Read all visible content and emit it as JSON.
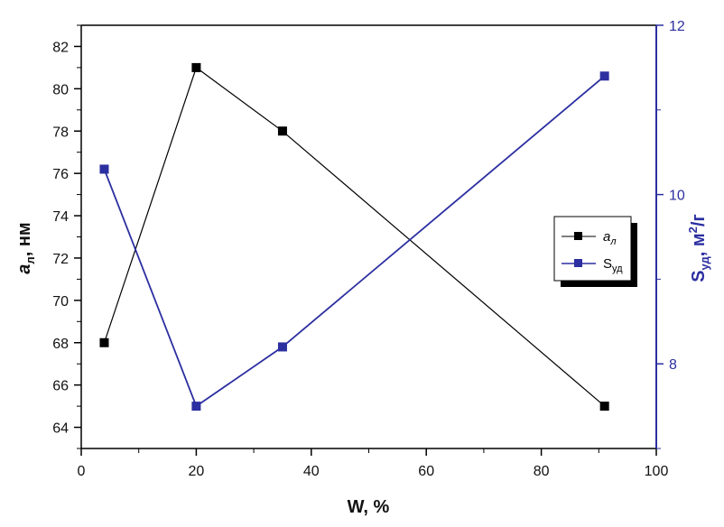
{
  "chart_data": {
    "type": "line",
    "xlabel": "W, %",
    "ylabel_left": {
      "main": "a",
      "sub": "л",
      "unit": ", нм"
    },
    "ylabel_right": {
      "main": "S",
      "sub": "уд",
      "unit_pre": ", м",
      "sup": "2",
      "unit_post": "/г"
    },
    "x_range": [
      0,
      100
    ],
    "x_ticks": [
      "0",
      "20",
      "40",
      "60",
      "80",
      "100"
    ],
    "y_left_range": [
      63,
      83
    ],
    "y_left_ticks": [
      "64",
      "66",
      "68",
      "70",
      "72",
      "74",
      "76",
      "78",
      "80",
      "82"
    ],
    "y_right_range": [
      7,
      12
    ],
    "y_right_ticks": [
      "8",
      "10",
      "12"
    ],
    "series": [
      {
        "name": "a_л",
        "legend": {
          "main": "a",
          "sub": "л"
        },
        "axis": "left",
        "color": "#000000",
        "marker": "square",
        "x": [
          4,
          20,
          35,
          91
        ],
        "y": [
          68,
          81,
          78,
          65
        ]
      },
      {
        "name": "S_уд",
        "legend": {
          "main": "S",
          "sub": "уд"
        },
        "axis": "right",
        "color": "#2c2fa0",
        "marker": "square",
        "x": [
          4,
          20,
          35,
          91
        ],
        "y": [
          10.3,
          7.5,
          8.2,
          11.4
        ]
      }
    ],
    "legend_position": "right-middle",
    "grid": false
  }
}
